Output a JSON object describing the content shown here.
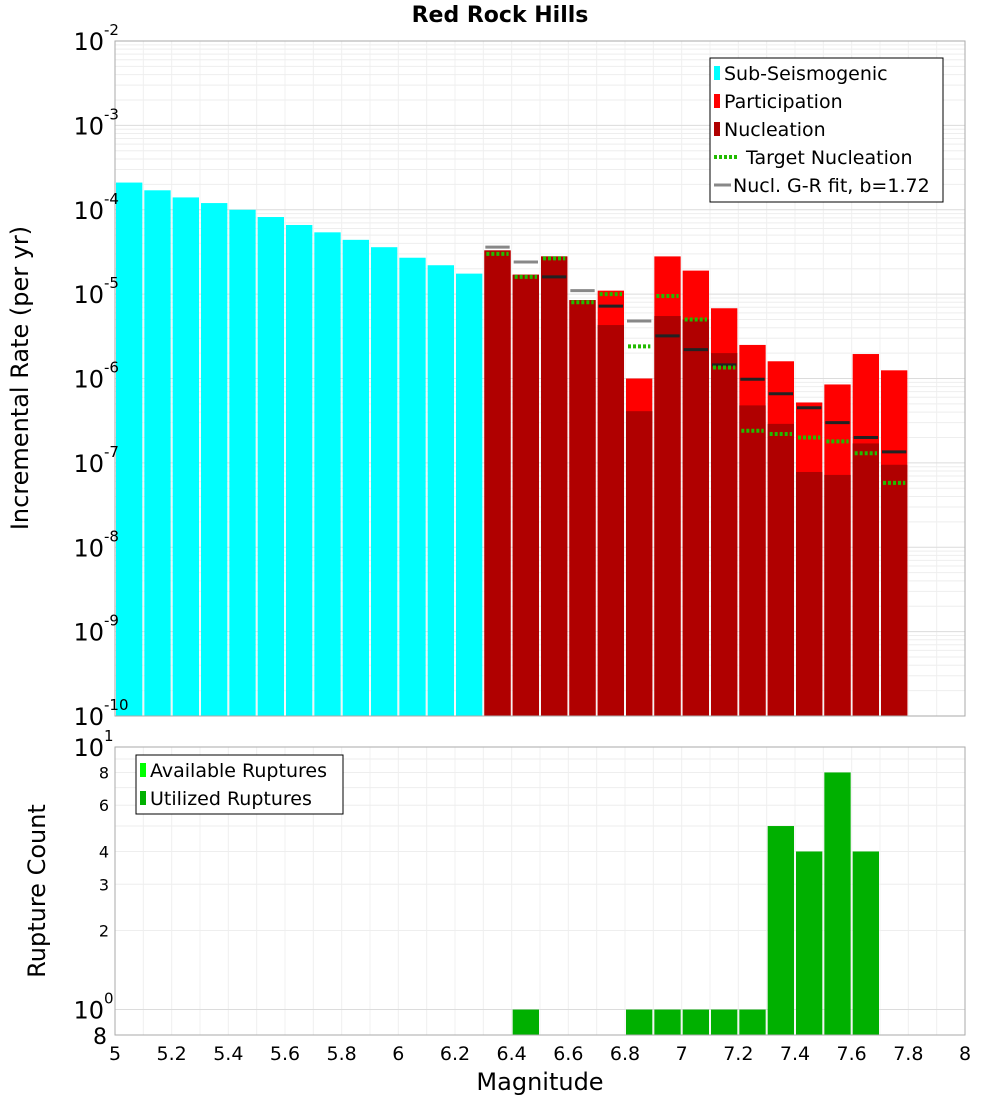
{
  "chart_data": [
    {
      "type": "bar",
      "title": "Red Rock Hills",
      "xlabel": "",
      "ylabel": "Incremental Rate (per yr)",
      "yscale": "log",
      "ylim_exp": [
        -10,
        -2
      ],
      "xlim": [
        5,
        8
      ],
      "grid": true,
      "legend_position": "top-right",
      "bin_width": 0.1,
      "x_centers": [
        5.05,
        5.15,
        5.25,
        5.35,
        5.45,
        5.55,
        5.65,
        5.75,
        5.85,
        5.95,
        6.05,
        6.15,
        6.25,
        6.35,
        6.45,
        6.55,
        6.65,
        6.75,
        6.85,
        6.95,
        7.05,
        7.15,
        7.25,
        7.35,
        7.45,
        7.55,
        7.65,
        7.75
      ],
      "series": [
        {
          "name": "Sub-Seismogenic",
          "color": "#00ffff",
          "x": [
            5.05,
            5.15,
            5.25,
            5.35,
            5.45,
            5.55,
            5.65,
            5.75,
            5.85,
            5.95,
            6.05,
            6.15,
            6.25
          ],
          "values": [
            0.00021,
            0.00017,
            0.00014,
            0.00012,
            0.0001,
            8.2e-05,
            6.6e-05,
            5.4e-05,
            4.4e-05,
            3.6e-05,
            2.7e-05,
            2.2e-05,
            1.75e-05
          ]
        },
        {
          "name": "Participation",
          "color": "#ff0000",
          "x": [
            6.35,
            6.45,
            6.55,
            6.65,
            6.75,
            6.85,
            6.95,
            7.05,
            7.15,
            7.25,
            7.35,
            7.45,
            7.55,
            7.65,
            7.75
          ],
          "values": [
            3.3e-05,
            1.7e-05,
            2.8e-05,
            8.5e-06,
            1.1e-05,
            1e-06,
            2.8e-05,
            1.9e-05,
            6.8e-06,
            2.5e-06,
            1.6e-06,
            5.2e-07,
            8.5e-07,
            1.95e-06,
            1.25e-06
          ]
        },
        {
          "name": "Nucleation",
          "color": "#b00000",
          "x": [
            6.35,
            6.45,
            6.55,
            6.65,
            6.75,
            6.85,
            6.95,
            7.05,
            7.15,
            7.25,
            7.35,
            7.45,
            7.55,
            7.65,
            7.75
          ],
          "values": [
            3.3e-05,
            1.7e-05,
            2.8e-05,
            8.5e-06,
            4.3e-06,
            4.1e-07,
            5.5e-06,
            5e-06,
            2e-06,
            4.8e-07,
            2.9e-07,
            7.8e-08,
            7.2e-08,
            1.7e-07,
            9.5e-08
          ]
        },
        {
          "name": "Target Nucleation",
          "color": "#22bb00",
          "style": "dotted",
          "x": [
            6.35,
            6.45,
            6.55,
            6.65,
            6.75,
            6.85,
            6.95,
            7.05,
            7.15,
            7.25,
            7.35,
            7.45,
            7.55,
            7.65,
            7.75
          ],
          "values": [
            3e-05,
            1.6e-05,
            2.65e-05,
            8e-06,
            1e-05,
            2.4e-06,
            9.5e-06,
            5e-06,
            1.35e-06,
            2.4e-07,
            2.2e-07,
            2e-07,
            1.8e-07,
            1.3e-07,
            5.8e-08
          ]
        },
        {
          "name": "Nucl. G-R fit, b=1.72",
          "color": "#888888",
          "x": [
            6.35,
            6.45,
            6.55,
            6.65,
            6.75,
            6.85,
            6.95,
            7.05,
            7.15,
            7.25,
            7.35,
            7.45,
            7.55,
            7.65,
            7.75
          ],
          "values": [
            3.6e-05,
            2.4e-05,
            1.6e-05,
            1.1e-05,
            7.2e-06,
            4.8e-06,
            3.2e-06,
            2.2e-06,
            1.45e-06,
            9.8e-07,
            6.6e-07,
            4.5e-07,
            3e-07,
            2e-07,
            1.35e-07
          ]
        }
      ],
      "legend": [
        "Sub-Seismogenic",
        "Participation",
        "Nucleation",
        "Target Nucleation",
        "Nucl. G-R fit, b=1.72"
      ]
    },
    {
      "type": "bar",
      "title": "",
      "xlabel": "Magnitude",
      "ylabel": "Rupture Count",
      "yscale": "log",
      "ylim": [
        0.8,
        10
      ],
      "xlim": [
        5,
        8
      ],
      "xticks": [
        "5",
        "5.2",
        "5.4",
        "5.6",
        "5.8",
        "6",
        "6.2",
        "6.4",
        "6.6",
        "6.8",
        "7",
        "7.2",
        "7.4",
        "7.6",
        "7.8",
        "8"
      ],
      "minor_y_ticks": [
        "8",
        "6",
        "4",
        "3",
        "2",
        "8"
      ],
      "grid": true,
      "legend_position": "top-left",
      "series": [
        {
          "name": "Available Ruptures",
          "color": "#00ff00",
          "x": [],
          "values": []
        },
        {
          "name": "Utilized Ruptures",
          "color": "#00b000",
          "x": [
            6.45,
            6.85,
            6.95,
            7.05,
            7.15,
            7.25,
            7.35,
            7.45,
            7.55,
            7.65
          ],
          "values": [
            1,
            1,
            1,
            1,
            1,
            1,
            5,
            4,
            8,
            4
          ]
        }
      ],
      "legend": [
        "Available Ruptures",
        "Utilized Ruptures"
      ]
    }
  ]
}
